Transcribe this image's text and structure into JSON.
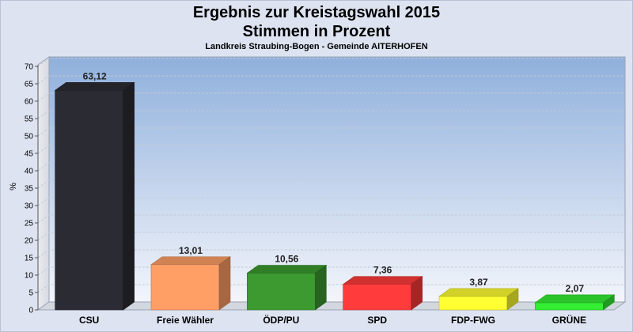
{
  "title_line1": "Ergebnis zur Kreistagswahl 2015",
  "title_line2": "Stimmen in Prozent",
  "subtitle": "Landkreis Straubing-Bogen - Gemeinde AITERHOFEN",
  "chart_data": {
    "type": "bar",
    "title": "Ergebnis zur Kreistagswahl 2015 / Stimmen in Prozent",
    "subtitle": "Landkreis Straubing-Bogen - Gemeinde AITERHOFEN",
    "xlabel": "",
    "ylabel": "%",
    "ylim": [
      0,
      70
    ],
    "yticks": [
      0,
      5,
      10,
      15,
      20,
      25,
      30,
      35,
      40,
      45,
      50,
      55,
      60,
      65,
      70
    ],
    "categories": [
      "CSU",
      "Freie Wähler",
      "ÖDP/PU",
      "SPD",
      "FDP-FWG",
      "GRÜNE"
    ],
    "values": [
      63.12,
      13.01,
      10.56,
      7.36,
      3.87,
      2.07
    ],
    "value_labels": [
      "63,12",
      "13,01",
      "10,56",
      "7,36",
      "3,87",
      "2,07"
    ],
    "colors": [
      "#2b2b33",
      "#ff9f66",
      "#3c9a30",
      "#ff3b3b",
      "#ffff33",
      "#33ee33"
    ],
    "grid": true,
    "legend": "none"
  }
}
